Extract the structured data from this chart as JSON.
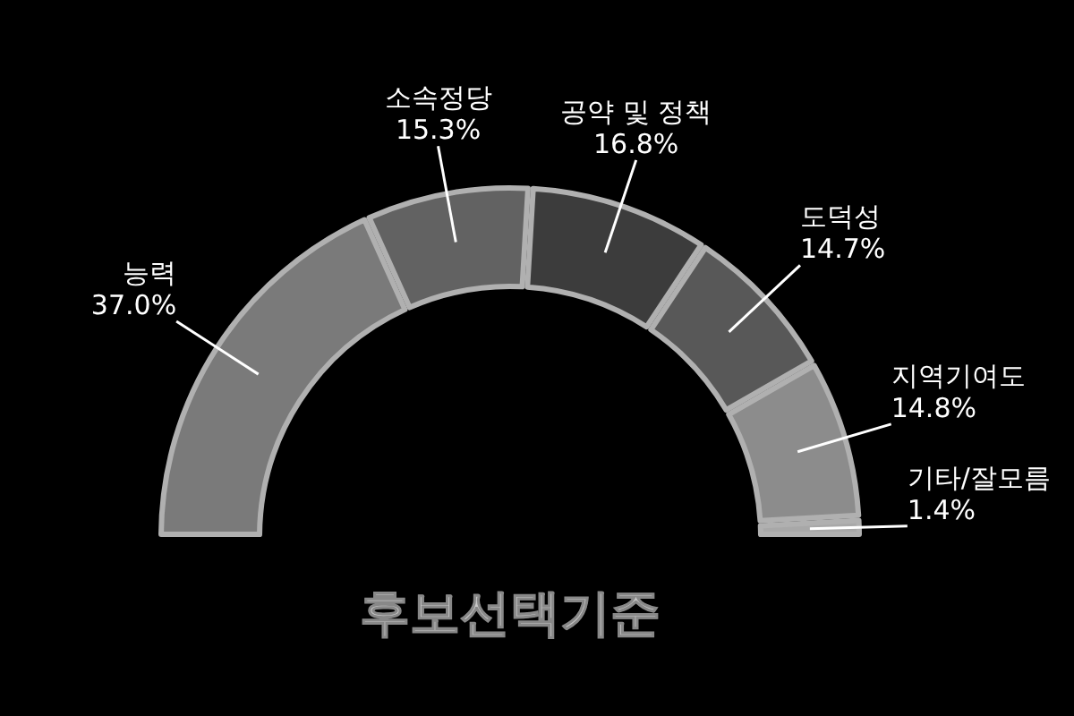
{
  "chart_data": {
    "type": "donut",
    "title": "후보선택기준",
    "categories": [
      "능력",
      "소속정당",
      "공약 및 정책",
      "도덕성",
      "지역기여도",
      "기타/잘모름"
    ],
    "values": [
      37.0,
      15.3,
      16.8,
      14.7,
      14.8,
      1.4
    ],
    "value_labels": [
      "37.0%",
      "15.3%",
      "16.8%",
      "14.7%",
      "14.8%",
      "1.4%"
    ],
    "colors": [
      "#7a7a7a",
      "#626262",
      "#3c3c3c",
      "#585858",
      "#8c8c8c",
      "#a8a8a8"
    ]
  }
}
